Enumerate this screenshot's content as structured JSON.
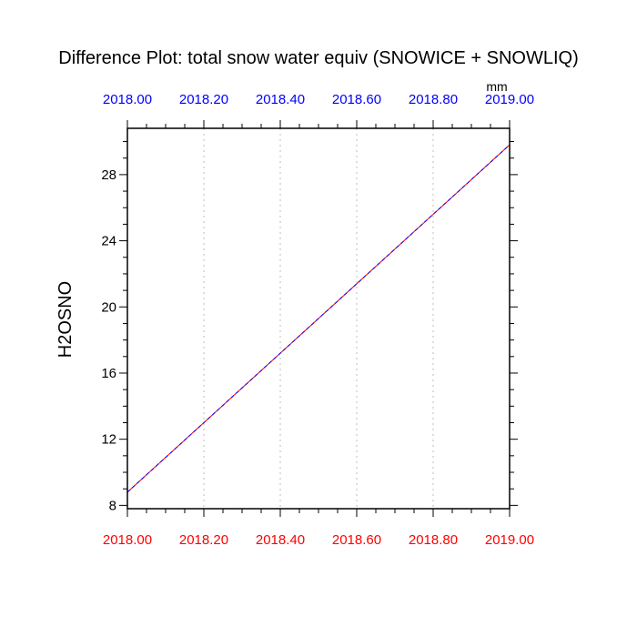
{
  "chart_data": {
    "type": "line",
    "title": "Difference Plot: total snow water equiv (SNOWICE + SNOWLIQ)",
    "units": "mm",
    "ylabel": "H2OSNO",
    "xlim": [
      2018.0,
      2019.0
    ],
    "ylim": [
      7.8,
      30.8
    ],
    "x_ticks": [
      2018.0,
      2018.2,
      2018.4,
      2018.6,
      2018.8,
      2019.0
    ],
    "x_tick_labels_top": [
      "2018.00",
      "2018.20",
      "2018.40",
      "2018.60",
      "2018.80",
      "2019.00"
    ],
    "x_tick_labels_bottom": [
      "2018.00",
      "2018.20",
      "2018.40",
      "2018.60",
      "2018.80",
      "2019.00"
    ],
    "y_ticks": [
      8,
      12,
      16,
      20,
      24,
      28
    ],
    "y_tick_labels": [
      "8",
      "12",
      "16",
      "20",
      "24",
      "28"
    ],
    "grid": "vertical dotted lines at x ticks",
    "series": [
      {
        "x": [
          2018.0,
          2019.0
        ],
        "values": [
          8.8,
          29.8
        ],
        "color": "#ff0000"
      },
      {
        "x": [
          2018.0,
          2019.0
        ],
        "values": [
          8.8,
          29.8
        ],
        "color": "#0000ff"
      }
    ]
  }
}
